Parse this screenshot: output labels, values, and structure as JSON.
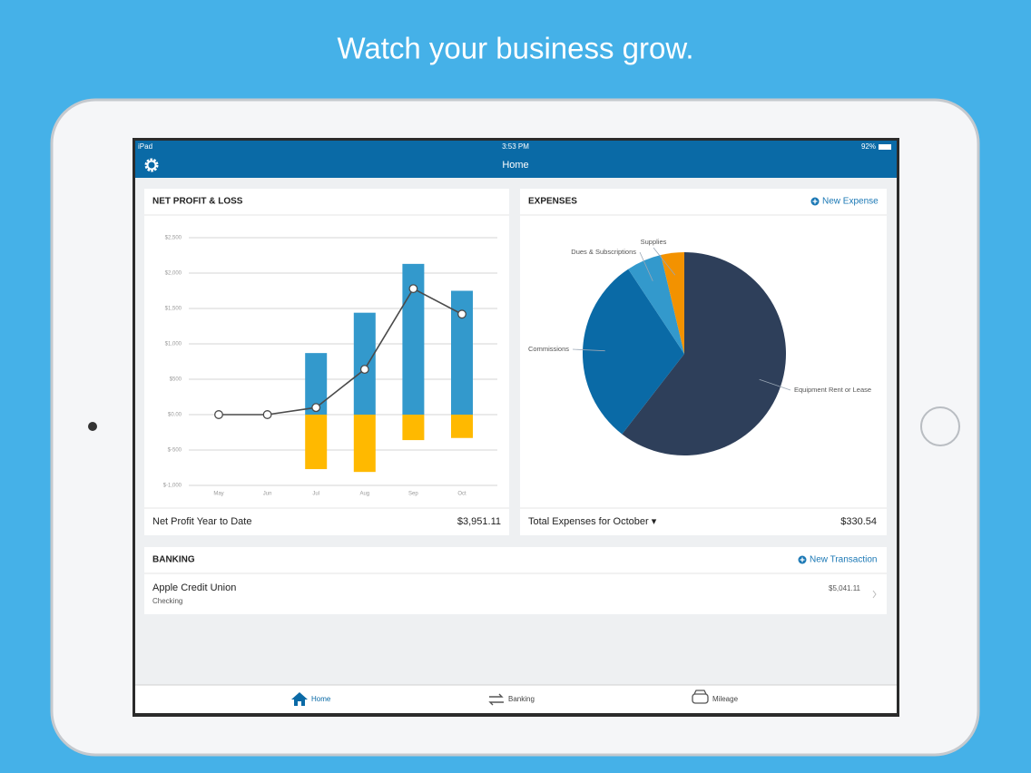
{
  "header": {
    "title": "Watch your business grow."
  },
  "status_bar": {
    "carrier": "iPad",
    "time": "3:53 PM",
    "battery": "92%"
  },
  "nav_bar": {
    "title": "Home"
  },
  "profit_card": {
    "title": "NET PROFIT & LOSS",
    "footer_label": "Net Profit Year to Date",
    "footer_value": "$3,951.11",
    "chart_data": {
      "type": "bar",
      "categories": [
        "May",
        "Jun",
        "Jul",
        "Aug",
        "Sep",
        "Oct"
      ],
      "series": [
        {
          "color": "#3399cc",
          "values": [
            0,
            0,
            870,
            1440,
            2130,
            1750
          ]
        },
        {
          "color": "#ffb900",
          "values": [
            0,
            0,
            -770,
            -810,
            -360,
            -330
          ]
        },
        {
          "type": "line",
          "color": "#4a4a4a",
          "values": [
            0,
            0,
            100,
            640,
            1780,
            1420
          ]
        }
      ],
      "ylim": [
        -1000,
        2500
      ],
      "yticks": [
        {
          "value": -1000,
          "label": "$-1,000"
        },
        {
          "value": -500,
          "label": "$-500"
        },
        {
          "value": 0,
          "label": "$0.00"
        },
        {
          "value": 500,
          "label": "$500"
        },
        {
          "value": 1000,
          "label": "$1,000"
        },
        {
          "value": 1500,
          "label": "$1,500"
        },
        {
          "value": 2000,
          "label": "$2,000"
        },
        {
          "value": 2500,
          "label": "$2,500"
        }
      ],
      "grid": true
    }
  },
  "expenses_card": {
    "title": "EXPENSES",
    "action": "New Expense",
    "footer_label": "Total Expenses for October ▾",
    "footer_value": "$330.54",
    "chart_data": {
      "type": "pie",
      "categories": [
        "Equipment Rent or Lease",
        "Commissions",
        "Dues & Subscriptions",
        "Supplies"
      ],
      "values": [
        60.5,
        30.2,
        5.6,
        3.7
      ],
      "colors": [
        "#2e3f5a",
        "#0a6aa6",
        "#3399cc",
        "#f39200"
      ]
    }
  },
  "banking_card": {
    "title": "BANKING",
    "action": "New Transaction",
    "accounts": [
      {
        "name": "Apple Credit Union",
        "type": "Checking",
        "balance": "$5,041.11"
      }
    ]
  },
  "tab_bar": {
    "tabs": [
      "Home",
      "Banking",
      "Mileage"
    ]
  }
}
